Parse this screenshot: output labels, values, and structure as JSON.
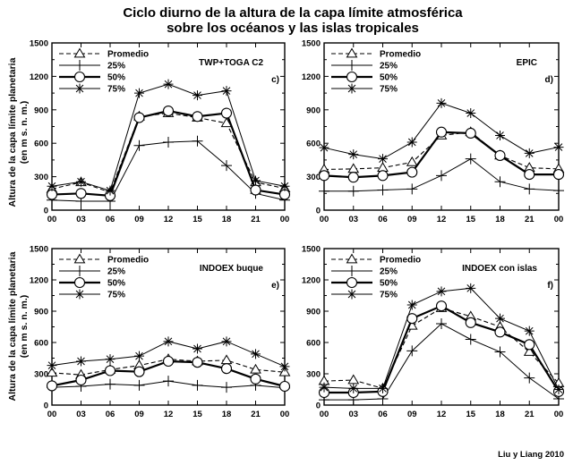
{
  "figure": {
    "title_line1": "Ciclo diurno de la altura de la capa límite atmosférica",
    "title_line2": "sobre los océanos y las islas tropicales",
    "ylabel_line1": "Altura de la capa límite planetaria",
    "ylabel_line2": "(en m s. n. m.)",
    "credit": "Liu y Liang 2010"
  },
  "chart_data": [
    {
      "type": "line",
      "panel_label": "TWP+TOGA C2",
      "panel_letter": "c)",
      "categories": [
        "00",
        "03",
        "06",
        "09",
        "12",
        "15",
        "18",
        "21",
        "00"
      ],
      "ylim": [
        0,
        1500
      ],
      "yticks": [
        0,
        300,
        600,
        900,
        1200,
        1500
      ],
      "series": [
        {
          "name": "Promedio",
          "values": [
            190,
            250,
            160,
            840,
            870,
            830,
            780,
            250,
            195
          ]
        },
        {
          "name": "25%",
          "values": [
            90,
            80,
            80,
            580,
            610,
            620,
            400,
            150,
            90
          ]
        },
        {
          "name": "50%",
          "values": [
            140,
            150,
            130,
            830,
            890,
            840,
            870,
            180,
            140
          ]
        },
        {
          "name": "75%",
          "values": [
            215,
            255,
            175,
            1050,
            1130,
            1030,
            1070,
            265,
            215
          ]
        }
      ]
    },
    {
      "type": "line",
      "panel_label": "EPIC",
      "panel_letter": "d)",
      "categories": [
        "00",
        "03",
        "06",
        "09",
        "12",
        "15",
        "18",
        "21",
        "00"
      ],
      "ylim": [
        0,
        1500
      ],
      "yticks": [
        0,
        300,
        600,
        900,
        1200,
        1500
      ],
      "series": [
        {
          "name": "Promedio",
          "values": [
            365,
            370,
            380,
            430,
            670,
            700,
            490,
            380,
            370
          ]
        },
        {
          "name": "25%",
          "values": [
            170,
            170,
            180,
            190,
            310,
            460,
            255,
            190,
            175
          ]
        },
        {
          "name": "50%",
          "values": [
            310,
            295,
            310,
            340,
            700,
            690,
            490,
            320,
            320
          ]
        },
        {
          "name": "75%",
          "values": [
            560,
            500,
            460,
            610,
            960,
            870,
            670,
            510,
            565
          ]
        }
      ]
    },
    {
      "type": "line",
      "panel_label": "INDOEX buque",
      "panel_letter": "e)",
      "categories": [
        "00",
        "03",
        "06",
        "09",
        "12",
        "15",
        "18",
        "21",
        "00"
      ],
      "ylim": [
        0,
        1500
      ],
      "yticks": [
        0,
        300,
        600,
        900,
        1200,
        1500
      ],
      "series": [
        {
          "name": "Promedio",
          "values": [
            310,
            290,
            340,
            380,
            440,
            420,
            430,
            340,
            315
          ]
        },
        {
          "name": "25%",
          "values": [
            170,
            180,
            200,
            190,
            230,
            190,
            170,
            190,
            165
          ]
        },
        {
          "name": "50%",
          "values": [
            185,
            240,
            330,
            320,
            420,
            410,
            350,
            250,
            180
          ]
        },
        {
          "name": "75%",
          "values": [
            380,
            420,
            440,
            470,
            610,
            540,
            610,
            490,
            370
          ]
        }
      ]
    },
    {
      "type": "line",
      "panel_label": "INDOEX con islas",
      "panel_letter": "f)",
      "categories": [
        "00",
        "03",
        "06",
        "09",
        "12",
        "15",
        "18",
        "21",
        "00"
      ],
      "ylim": [
        0,
        1500
      ],
      "yticks": [
        0,
        300,
        600,
        900,
        1200,
        1500
      ],
      "series": [
        {
          "name": "Promedio",
          "values": [
            230,
            240,
            160,
            760,
            930,
            850,
            750,
            510,
            210
          ]
        },
        {
          "name": "25%",
          "values": [
            50,
            50,
            60,
            520,
            780,
            630,
            510,
            260,
            60
          ]
        },
        {
          "name": "50%",
          "values": [
            120,
            120,
            130,
            830,
            950,
            790,
            700,
            580,
            130
          ]
        },
        {
          "name": "75%",
          "values": [
            170,
            160,
            160,
            960,
            1090,
            1120,
            830,
            710,
            150
          ]
        }
      ]
    }
  ]
}
